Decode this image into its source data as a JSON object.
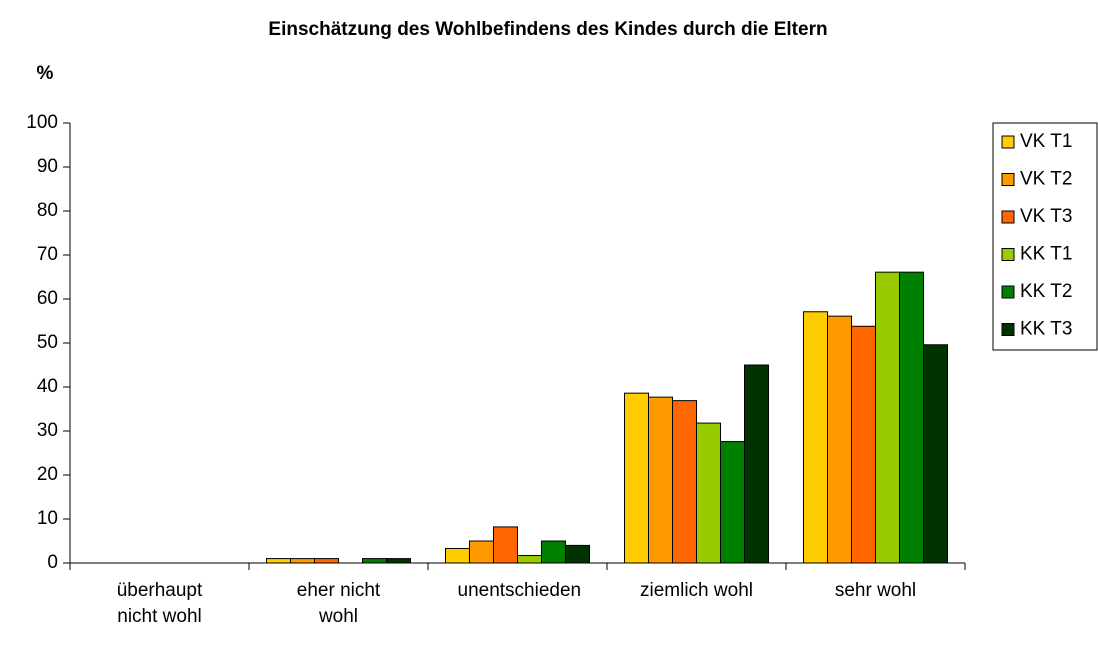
{
  "chart_data": {
    "type": "bar",
    "title": "Einschätzung des Wohlbefindens des Kindes durch die Eltern",
    "y_label": "%",
    "categories": [
      "überhaupt nicht wohl",
      "eher nicht wohl",
      "unentschieden",
      "ziemlich wohl",
      "sehr wohl"
    ],
    "series": [
      {
        "name": "VK T1",
        "color": "#ffcc00",
        "values": [
          0,
          1,
          3.3,
          38.6,
          57.1
        ]
      },
      {
        "name": "VK T2",
        "color": "#ff9900",
        "values": [
          0,
          1,
          5,
          37.7,
          56.1
        ]
      },
      {
        "name": "VK T3",
        "color": "#ff6600",
        "values": [
          0,
          1,
          8.2,
          36.9,
          53.8
        ]
      },
      {
        "name": "KK T1",
        "color": "#99cc00",
        "values": [
          0,
          0,
          1.7,
          31.8,
          66.1
        ]
      },
      {
        "name": "KK T2",
        "color": "#008000",
        "values": [
          0,
          1,
          5,
          27.6,
          66.1
        ]
      },
      {
        "name": "KK T3",
        "color": "#003300",
        "values": [
          0,
          1,
          4,
          45,
          49.6
        ]
      }
    ],
    "ylim": [
      0,
      100
    ],
    "yticks": [
      0,
      10,
      20,
      30,
      40,
      50,
      60,
      70,
      80,
      90,
      100
    ],
    "legend": "right"
  }
}
